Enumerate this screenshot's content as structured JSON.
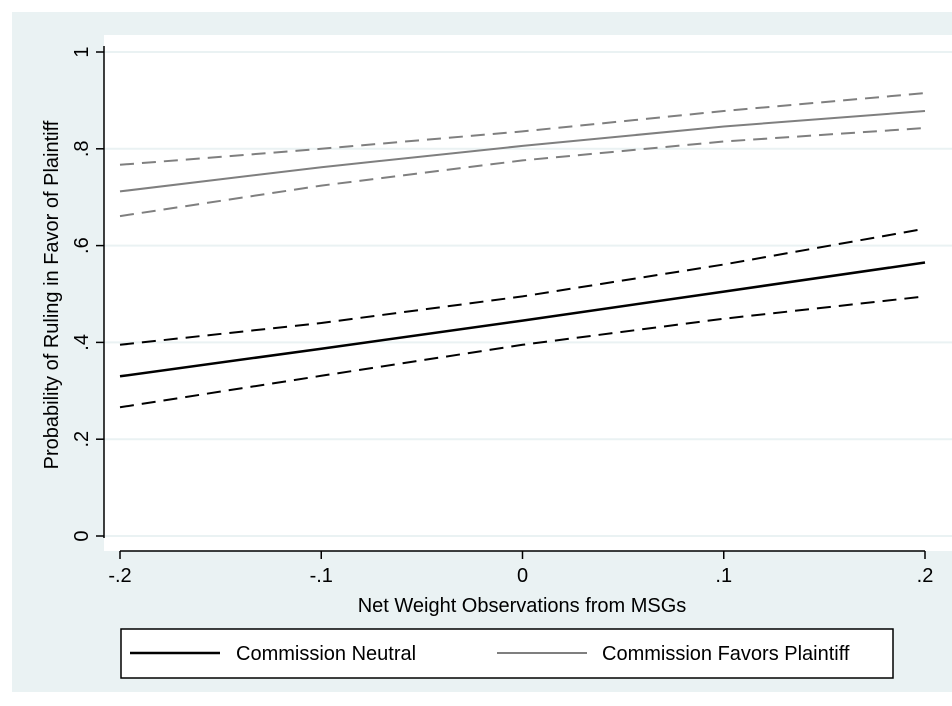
{
  "colors": {
    "outer_background": "#eaf2f3",
    "plot_background": "#ffffff",
    "gridline": "#eaf2f3",
    "neutral_series": "#000000",
    "favors_series": "#7f7f7f"
  },
  "chart_data": {
    "type": "line",
    "xlabel": "Net Weight Observations from MSGs",
    "ylabel": "Probability of Ruling in Favor of Plaintiff",
    "xlim": [
      -0.2,
      0.2
    ],
    "ylim": [
      0,
      1
    ],
    "grid": true,
    "legend_position": "bottom",
    "x_ticks": [
      {
        "value": -0.2,
        "label": "-.2"
      },
      {
        "value": -0.1,
        "label": "-.1"
      },
      {
        "value": 0,
        "label": "0"
      },
      {
        "value": 0.1,
        "label": ".1"
      },
      {
        "value": 0.2,
        "label": ".2"
      }
    ],
    "y_ticks": [
      {
        "value": 0,
        "label": "0"
      },
      {
        "value": 0.2,
        "label": ".2"
      },
      {
        "value": 0.4,
        "label": ".4"
      },
      {
        "value": 0.6,
        "label": ".6"
      },
      {
        "value": 0.8,
        "label": ".8"
      },
      {
        "value": 1,
        "label": "1"
      }
    ],
    "x": [
      -0.2,
      -0.1,
      0,
      0.1,
      0.2
    ],
    "series": [
      {
        "name": "Commission Neutral",
        "color": "#000000",
        "values": [
          0.33,
          0.387,
          0.445,
          0.505,
          0.565
        ],
        "ci_lower": [
          0.266,
          0.331,
          0.395,
          0.449,
          0.495
        ],
        "ci_upper": [
          0.395,
          0.44,
          0.495,
          0.561,
          0.635
        ]
      },
      {
        "name": "Commission Favors Plaintiff",
        "color": "#7f7f7f",
        "values": [
          0.712,
          0.762,
          0.806,
          0.846,
          0.878
        ],
        "ci_lower": [
          0.661,
          0.724,
          0.776,
          0.815,
          0.843
        ],
        "ci_upper": [
          0.767,
          0.8,
          0.836,
          0.878,
          0.915
        ]
      }
    ]
  }
}
